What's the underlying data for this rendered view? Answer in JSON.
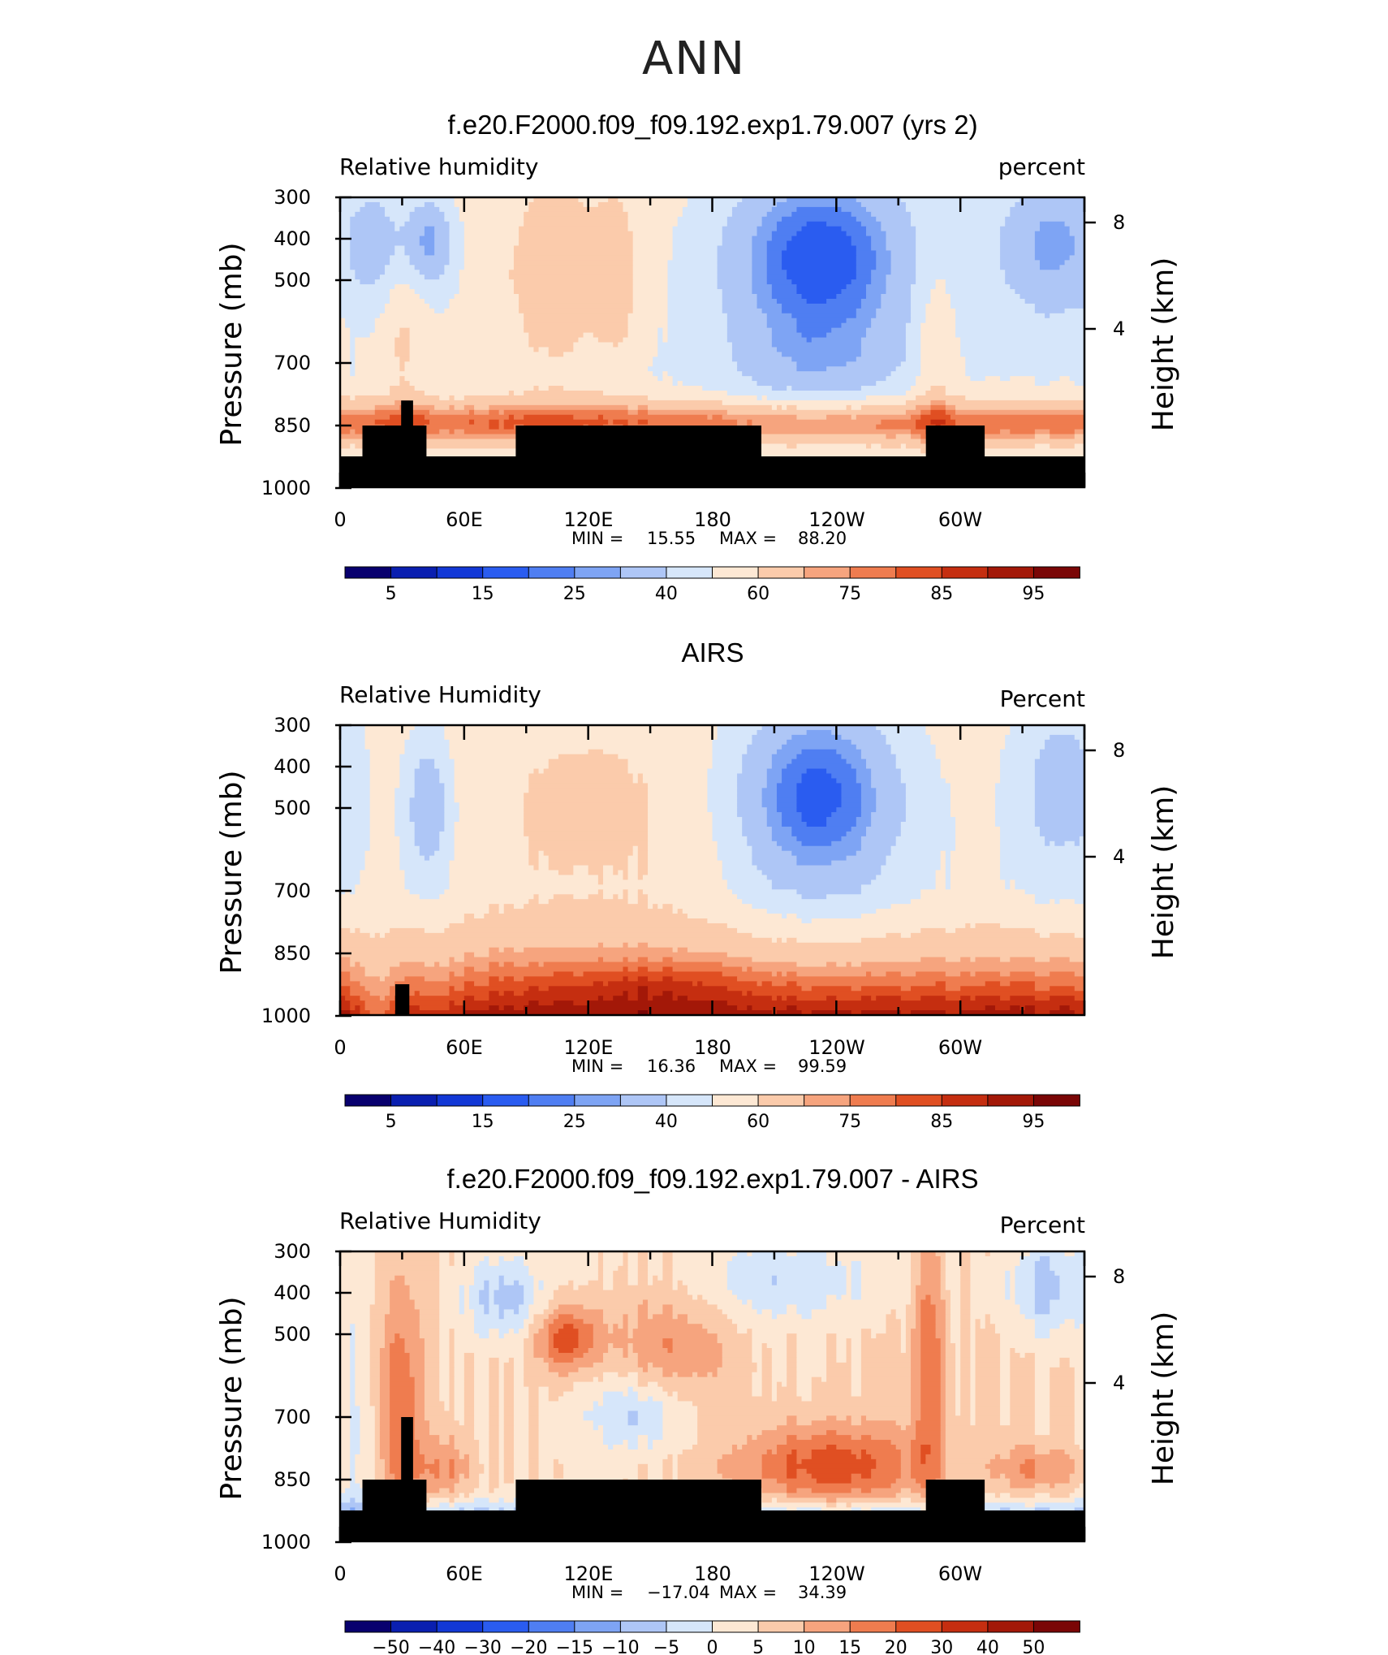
{
  "page": {
    "season": "ANN"
  },
  "chart_data": [
    {
      "type": "heatmap",
      "title": "f.e20.F2000.f09_f09.192.exp1.79.007 (yrs 2)",
      "left_label": "Relative  humidity",
      "right_label": "percent",
      "ylabel": "Pressure  (mb)",
      "y2label": "Height  (km)",
      "yticks": [
        "300",
        "400",
        "500",
        "700",
        "850",
        "1000"
      ],
      "y2ticks": [
        "8",
        "4"
      ],
      "xticks": [
        "0",
        "60E",
        "120E",
        "180",
        "120W",
        "60W"
      ],
      "stats": {
        "min_label": "MIN =",
        "min": "15.55",
        "max_label": "MAX =",
        "max": "88.20"
      },
      "colorbar": {
        "labels": [
          "5",
          "15",
          "25",
          "40",
          "60",
          "75",
          "85",
          "95"
        ],
        "colors": [
          "#08006e",
          "#0a1fb0",
          "#1238d6",
          "#2a5cf0",
          "#4f7ef2",
          "#7ea4f4",
          "#aec6f6",
          "#d6e6fa",
          "#fde8d4",
          "#fbcbab",
          "#f6a47e",
          "#ef7c4f",
          "#e04f22",
          "#c52e10",
          "#a31808",
          "#7a0606"
        ]
      },
      "field": {
        "kind": "rh_model",
        "terrain": "model"
      }
    },
    {
      "type": "heatmap",
      "title": "AIRS",
      "left_label": "Relative Humidity",
      "right_label": "Percent",
      "ylabel": "Pressure  (mb)",
      "y2label": "Height  (km)",
      "yticks": [
        "300",
        "400",
        "500",
        "700",
        "850",
        "1000"
      ],
      "y2ticks": [
        "8",
        "4"
      ],
      "xticks": [
        "0",
        "60E",
        "120E",
        "180",
        "120W",
        "60W"
      ],
      "stats": {
        "min_label": "MIN =",
        "min": "16.36",
        "max_label": "MAX =",
        "max": "99.59"
      },
      "colorbar": {
        "labels": [
          "5",
          "15",
          "25",
          "40",
          "60",
          "75",
          "85",
          "95"
        ],
        "colors": [
          "#08006e",
          "#0a1fb0",
          "#1238d6",
          "#2a5cf0",
          "#4f7ef2",
          "#7ea4f4",
          "#aec6f6",
          "#d6e6fa",
          "#fde8d4",
          "#fbcbab",
          "#f6a47e",
          "#ef7c4f",
          "#e04f22",
          "#c52e10",
          "#a31808",
          "#7a0606"
        ]
      },
      "field": {
        "kind": "rh_obs",
        "terrain": "obs"
      }
    },
    {
      "type": "heatmap",
      "title": "f.e20.F2000.f09_f09.192.exp1.79.007 - AIRS",
      "left_label": "Relative Humidity",
      "right_label": "Percent",
      "ylabel": "Pressure  (mb)",
      "y2label": "Height  (km)",
      "yticks": [
        "300",
        "400",
        "500",
        "700",
        "850",
        "1000"
      ],
      "y2ticks": [
        "8",
        "4"
      ],
      "xticks": [
        "0",
        "60E",
        "120E",
        "180",
        "120W",
        "60W"
      ],
      "stats": {
        "min_label": "MIN =",
        "min": "−17.04",
        "max_label": "MAX =",
        "max": "34.39"
      },
      "colorbar": {
        "labels": [
          "−50",
          "−40",
          "−30",
          "−20",
          "−15",
          "−10",
          "−5",
          "0",
          "5",
          "10",
          "15",
          "20",
          "30",
          "40",
          "50"
        ],
        "colors": [
          "#08006e",
          "#0a1fb0",
          "#1238d6",
          "#2a5cf0",
          "#4f7ef2",
          "#7ea4f4",
          "#aec6f6",
          "#d6e6fa",
          "#fde8d4",
          "#fbcbab",
          "#f6a47e",
          "#ef7c4f",
          "#e04f22",
          "#c52e10",
          "#a31808",
          "#7a0606"
        ]
      },
      "field": {
        "kind": "rh_diff",
        "terrain": "model"
      }
    }
  ]
}
